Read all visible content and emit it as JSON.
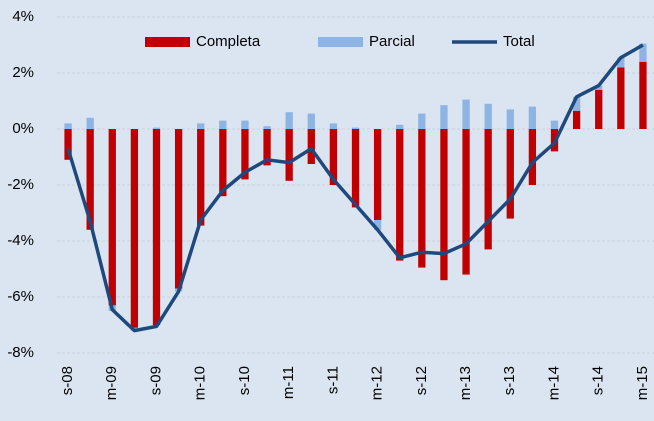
{
  "chart_data": {
    "type": "bar",
    "categories": [
      "s-08",
      null,
      "m-09",
      null,
      "s-09",
      null,
      "m-10",
      null,
      "s-10",
      null,
      "m-11",
      null,
      "s-11",
      null,
      "m-12",
      null,
      "s-12",
      null,
      "m-13",
      null,
      "s-13",
      null,
      "m-14",
      null,
      "s-14",
      null,
      "m-15"
    ],
    "series": [
      {
        "name": "Completa",
        "type": "bar",
        "color": "#c00000",
        "values": [
          -1.1,
          -3.6,
          -6.3,
          -7.1,
          -7.0,
          -5.7,
          -3.45,
          -2.4,
          -1.8,
          -1.3,
          -1.85,
          -1.25,
          -2.0,
          -2.8,
          -3.25,
          -4.7,
          -4.95,
          -5.4,
          -5.2,
          -4.3,
          -3.2,
          -2.0,
          -0.8,
          0.65,
          1.4,
          2.2,
          2.4
        ]
      },
      {
        "name": "Parcial",
        "type": "bar",
        "color": "#8db4e2",
        "values": [
          0.2,
          0.4,
          -0.2,
          -0.1,
          0.05,
          -0.1,
          0.2,
          0.3,
          0.3,
          0.1,
          0.6,
          0.55,
          0.2,
          0.05,
          -0.35,
          0.15,
          0.55,
          0.85,
          1.05,
          0.9,
          0.7,
          0.8,
          0.3,
          0.5,
          0.15,
          0.35,
          0.65
        ]
      },
      {
        "name": "Total",
        "type": "line",
        "color": "#1f497d",
        "values": [
          -0.7,
          -3.3,
          -6.45,
          -7.2,
          -7.05,
          -5.8,
          -3.25,
          -2.2,
          -1.55,
          -1.1,
          -1.2,
          -0.7,
          -1.8,
          -2.7,
          -3.6,
          -4.6,
          -4.4,
          -4.45,
          -4.1,
          -3.3,
          -2.5,
          -1.2,
          -0.5,
          1.15,
          1.55,
          2.55,
          3.0
        ]
      }
    ],
    "ylim": [
      -8.6,
      4.1
    ],
    "yticks": [
      {
        "value": -8,
        "label": "-8%"
      },
      {
        "value": -6,
        "label": "-6%"
      },
      {
        "value": -4,
        "label": "-4%"
      },
      {
        "value": -2,
        "label": "-2%"
      },
      {
        "value": 0,
        "label": "0%"
      },
      {
        "value": 2,
        "label": "2%"
      },
      {
        "value": 4,
        "label": "4%"
      }
    ],
    "grid": true,
    "legend": "top"
  }
}
